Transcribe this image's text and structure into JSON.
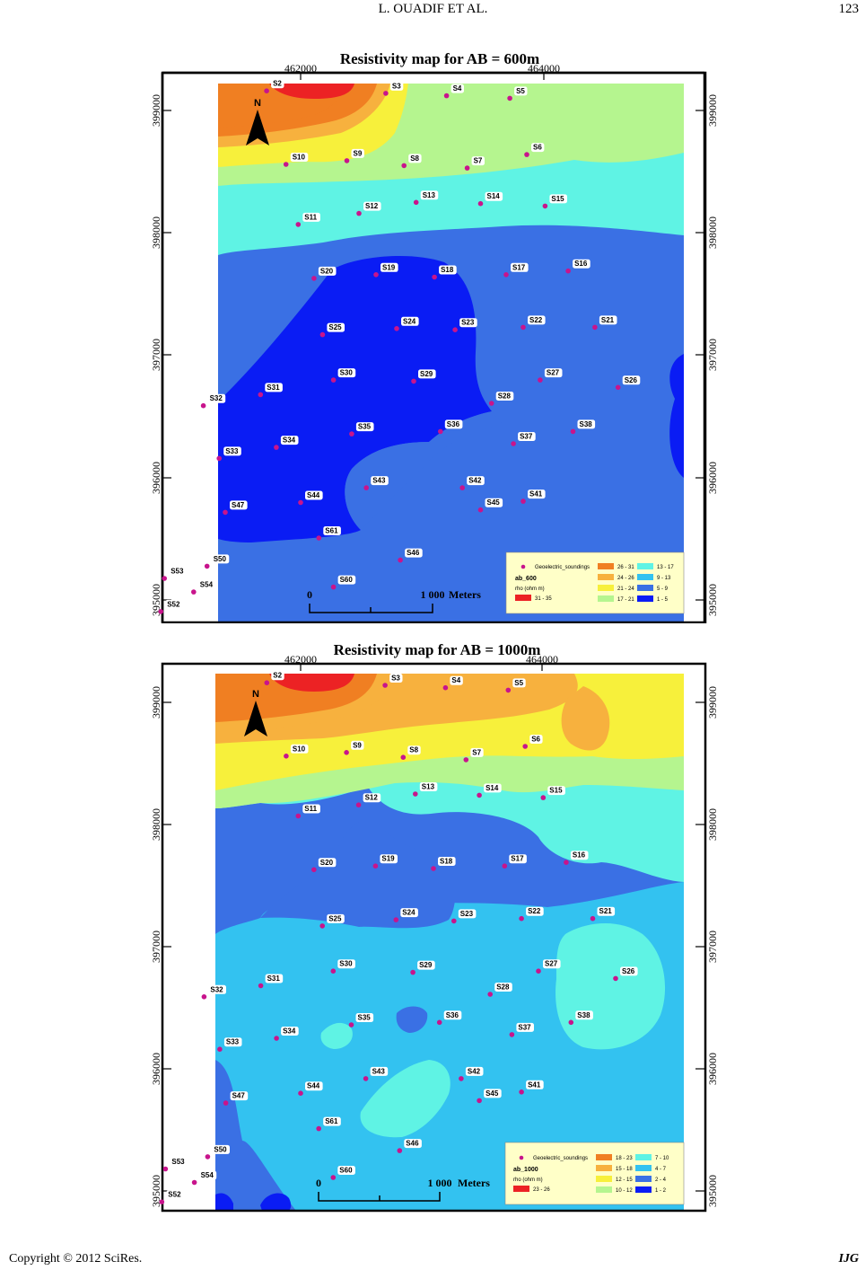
{
  "header": {
    "authors": "L. OUADIF    ET    AL.",
    "page_number": "123"
  },
  "footer": {
    "copyright": "Copyright © 2012 SciRes.",
    "journal": "IJG"
  },
  "colors": {
    "orange": "#f07f22",
    "light_orange": "#f7b13e",
    "yellow": "#f7f03b",
    "light_green": "#b5f58f",
    "cyan": "#5ff3e4",
    "sky": "#33c2f0",
    "steel_blue": "#3a70e4",
    "blue": "#0a1cf4",
    "red": "#ec2224",
    "soundings": "#c8148c"
  },
  "maps": [
    {
      "title": "Resistivity map  for AB = 600m",
      "x_ticks": [
        "462000",
        "464000"
      ],
      "y_ticks": [
        "399000",
        "398000",
        "397000",
        "396000",
        "395000"
      ],
      "north": "N",
      "scale": {
        "zero": "0",
        "end": "1 000",
        "unit": "Meters"
      },
      "legend": {
        "soundings_label": "Geoelectric_soundings",
        "layer": "ab_600",
        "unit": "rho (ohm m)",
        "classes": [
          "31 - 35",
          "26 - 31",
          "24 - 26",
          "21 - 24",
          "17 - 21",
          "13 - 17",
          "9 - 13",
          "5 - 9",
          "1 - 5"
        ]
      }
    },
    {
      "title": "Resistivity map  for AB = 1000m",
      "x_ticks": [
        "462000",
        "464000"
      ],
      "y_ticks": [
        "399000",
        "398000",
        "397000",
        "396000",
        "395000"
      ],
      "north": "N",
      "scale": {
        "zero": "0",
        "end": "1 000",
        "unit": "Meters"
      },
      "legend": {
        "soundings_label": "Geoelectric_soundings",
        "layer": "ab_1000",
        "unit": "rho (ohm m)",
        "classes": [
          "23 - 26",
          "18 - 23",
          "15 - 18",
          "12 - 15",
          "10 - 12",
          "7 - 10",
          "4 - 7",
          "2 - 4",
          "1 - 2"
        ]
      }
    }
  ],
  "soundings": [
    {
      "id": "S2",
      "e": 461720,
      "n": 399160
    },
    {
      "id": "S3",
      "e": 462700,
      "n": 399140
    },
    {
      "id": "S4",
      "e": 463200,
      "n": 399120
    },
    {
      "id": "S5",
      "e": 463720,
      "n": 399100
    },
    {
      "id": "S6",
      "e": 463860,
      "n": 398640
    },
    {
      "id": "S7",
      "e": 463370,
      "n": 398530
    },
    {
      "id": "S8",
      "e": 462850,
      "n": 398550
    },
    {
      "id": "S9",
      "e": 462380,
      "n": 398590
    },
    {
      "id": "S10",
      "e": 461880,
      "n": 398560
    },
    {
      "id": "S11",
      "e": 461980,
      "n": 398070
    },
    {
      "id": "S12",
      "e": 462480,
      "n": 398160
    },
    {
      "id": "S13",
      "e": 462950,
      "n": 398250
    },
    {
      "id": "S14",
      "e": 463480,
      "n": 398240
    },
    {
      "id": "S15",
      "e": 464010,
      "n": 398220
    },
    {
      "id": "S16",
      "e": 464200,
      "n": 397690
    },
    {
      "id": "S17",
      "e": 463690,
      "n": 397660
    },
    {
      "id": "S18",
      "e": 463100,
      "n": 397640
    },
    {
      "id": "S19",
      "e": 462620,
      "n": 397660
    },
    {
      "id": "S20",
      "e": 462110,
      "n": 397630
    },
    {
      "id": "S21",
      "e": 464420,
      "n": 397230
    },
    {
      "id": "S22",
      "e": 463830,
      "n": 397230
    },
    {
      "id": "S23",
      "e": 463270,
      "n": 397210
    },
    {
      "id": "S24",
      "e": 462790,
      "n": 397220
    },
    {
      "id": "S25",
      "e": 462180,
      "n": 397170
    },
    {
      "id": "S26",
      "e": 464610,
      "n": 396740
    },
    {
      "id": "S27",
      "e": 463970,
      "n": 396800
    },
    {
      "id": "S28",
      "e": 463570,
      "n": 396610
    },
    {
      "id": "S29",
      "e": 462930,
      "n": 396790
    },
    {
      "id": "S30",
      "e": 462270,
      "n": 396800
    },
    {
      "id": "S31",
      "e": 461670,
      "n": 396680
    },
    {
      "id": "S32",
      "e": 461200,
      "n": 396590
    },
    {
      "id": "S33",
      "e": 461330,
      "n": 396160
    },
    {
      "id": "S34",
      "e": 461800,
      "n": 396250
    },
    {
      "id": "S35",
      "e": 462420,
      "n": 396360
    },
    {
      "id": "S36",
      "e": 463150,
      "n": 396380
    },
    {
      "id": "S37",
      "e": 463750,
      "n": 396280
    },
    {
      "id": "S38",
      "e": 464240,
      "n": 396380
    },
    {
      "id": "S41",
      "e": 463830,
      "n": 395810
    },
    {
      "id": "S42",
      "e": 463330,
      "n": 395920
    },
    {
      "id": "S43",
      "e": 462540,
      "n": 395920
    },
    {
      "id": "S44",
      "e": 462000,
      "n": 395800
    },
    {
      "id": "S45",
      "e": 463480,
      "n": 395740
    },
    {
      "id": "S46",
      "e": 462820,
      "n": 395330
    },
    {
      "id": "S47",
      "e": 461380,
      "n": 395720
    },
    {
      "id": "S50",
      "e": 461230,
      "n": 395280
    },
    {
      "id": "S52",
      "e": 460850,
      "n": 394910
    },
    {
      "id": "S53",
      "e": 460880,
      "n": 395180
    },
    {
      "id": "S54",
      "e": 461120,
      "n": 395070
    },
    {
      "id": "S60",
      "e": 462270,
      "n": 395110
    },
    {
      "id": "S61",
      "e": 462150,
      "n": 395510
    }
  ]
}
